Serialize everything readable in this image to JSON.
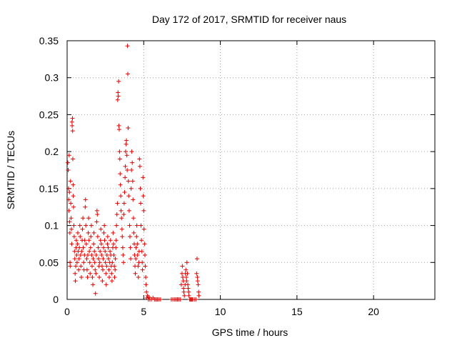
{
  "chart_data": {
    "type": "scatter",
    "title": "Day 172 of 2017, SRMTID for receiver naus",
    "xlabel": "GPS time / hours",
    "ylabel": "SRMTID / TECUs",
    "xlim": [
      0,
      24
    ],
    "ylim": [
      0,
      0.35
    ],
    "x_ticks": [
      0,
      5,
      10,
      15,
      20
    ],
    "y_ticks": [
      0,
      0.05,
      0.1,
      0.15,
      0.2,
      0.25,
      0.3,
      0.35
    ],
    "x_tick_labels": [
      "0",
      "5",
      "10",
      "15",
      "20"
    ],
    "y_tick_labels": [
      "0",
      "0.05",
      "0.1",
      "0.15",
      "0.2",
      "0.25",
      "0.3",
      "0.35"
    ],
    "grid": true,
    "marker": "plus",
    "color": "#e00000",
    "series": [
      {
        "name": "",
        "points": [
          [
            0.05,
            0.185
          ],
          [
            0.07,
            0.175
          ],
          [
            0.09,
            0.15
          ],
          [
            0.1,
            0.135
          ],
          [
            0.12,
            0.12
          ],
          [
            0.13,
            0.195
          ],
          [
            0.15,
            0.145
          ],
          [
            0.16,
            0.105
          ],
          [
            0.18,
            0.09
          ],
          [
            0.19,
            0.05
          ],
          [
            0.2,
            0.045
          ],
          [
            0.22,
            0.16
          ],
          [
            0.24,
            0.13
          ],
          [
            0.26,
            0.11
          ],
          [
            0.28,
            0.095
          ],
          [
            0.3,
            0.075
          ],
          [
            0.32,
            0.24
          ],
          [
            0.33,
            0.235
          ],
          [
            0.35,
            0.245
          ],
          [
            0.36,
            0.228
          ],
          [
            0.37,
            0.19
          ],
          [
            0.39,
            0.155
          ],
          [
            0.4,
            0.14
          ],
          [
            0.42,
            0.125
          ],
          [
            0.44,
            0.1
          ],
          [
            0.46,
            0.085
          ],
          [
            0.48,
            0.065
          ],
          [
            0.5,
            0.055
          ],
          [
            0.52,
            0.035
          ],
          [
            0.54,
            0.025
          ],
          [
            0.56,
            0.045
          ],
          [
            0.58,
            0.07
          ],
          [
            0.6,
            0.08
          ],
          [
            0.62,
            0.06
          ],
          [
            0.65,
            0.05
          ],
          [
            0.68,
            0.075
          ],
          [
            0.7,
            0.09
          ],
          [
            0.72,
            0.065
          ],
          [
            0.75,
            0.04
          ],
          [
            0.78,
            0.055
          ],
          [
            0.8,
            0.07
          ],
          [
            0.83,
            0.1
          ],
          [
            0.85,
            0.085
          ],
          [
            0.88,
            0.06
          ],
          [
            0.9,
            0.045
          ],
          [
            0.93,
            0.03
          ],
          [
            0.95,
            0.065
          ],
          [
            0.98,
            0.08
          ],
          [
            1.0,
            0.095
          ],
          [
            1.03,
            0.11
          ],
          [
            1.05,
            0.07
          ],
          [
            1.08,
            0.05
          ],
          [
            1.1,
            0.04
          ],
          [
            1.13,
            0.06
          ],
          [
            1.15,
            0.08
          ],
          [
            1.18,
            0.125
          ],
          [
            1.2,
            0.135
          ],
          [
            1.22,
            0.1
          ],
          [
            1.25,
            0.075
          ],
          [
            1.28,
            0.055
          ],
          [
            1.3,
            0.04
          ],
          [
            1.33,
            0.03
          ],
          [
            1.35,
            0.06
          ],
          [
            1.38,
            0.09
          ],
          [
            1.4,
            0.11
          ],
          [
            1.43,
            0.08
          ],
          [
            1.45,
            0.065
          ],
          [
            1.48,
            0.05
          ],
          [
            1.5,
            0.035
          ],
          [
            1.53,
            0.07
          ],
          [
            1.55,
            0.085
          ],
          [
            1.58,
            0.1
          ],
          [
            1.6,
            0.06
          ],
          [
            1.63,
            0.045
          ],
          [
            1.65,
            0.03
          ],
          [
            1.68,
            0.02
          ],
          [
            1.7,
            0.055
          ],
          [
            1.73,
            0.075
          ],
          [
            1.75,
            0.09
          ],
          [
            1.78,
            0.065
          ],
          [
            1.8,
            0.05
          ],
          [
            1.83,
            0.04
          ],
          [
            1.85,
            0.008
          ],
          [
            1.88,
            0.035
          ],
          [
            1.9,
            0.06
          ],
          [
            1.93,
            0.105
          ],
          [
            1.95,
            0.12
          ],
          [
            1.97,
            0.115
          ],
          [
            2.0,
            0.085
          ],
          [
            2.03,
            0.07
          ],
          [
            2.05,
            0.055
          ],
          [
            2.08,
            0.045
          ],
          [
            2.1,
            0.03
          ],
          [
            2.13,
            0.05
          ],
          [
            2.15,
            0.065
          ],
          [
            2.18,
            0.08
          ],
          [
            2.2,
            0.095
          ],
          [
            2.23,
            0.075
          ],
          [
            2.25,
            0.06
          ],
          [
            2.28,
            0.045
          ],
          [
            2.3,
            0.025
          ],
          [
            2.33,
            0.04
          ],
          [
            2.35,
            0.055
          ],
          [
            2.38,
            0.07
          ],
          [
            2.4,
            0.09
          ],
          [
            2.43,
            0.1
          ],
          [
            2.45,
            0.08
          ],
          [
            2.48,
            0.065
          ],
          [
            2.5,
            0.05
          ],
          [
            2.53,
            0.035
          ],
          [
            2.55,
            0.02
          ],
          [
            2.58,
            0.045
          ],
          [
            2.6,
            0.06
          ],
          [
            2.63,
            0.075
          ],
          [
            2.65,
            0.085
          ],
          [
            2.68,
            0.07
          ],
          [
            2.7,
            0.055
          ],
          [
            2.73,
            0.04
          ],
          [
            2.75,
            0.03
          ],
          [
            2.78,
            0.05
          ],
          [
            2.8,
            0.065
          ],
          [
            2.83,
            0.08
          ],
          [
            2.85,
            0.06
          ],
          [
            2.88,
            0.045
          ],
          [
            2.9,
            0.035
          ],
          [
            2.93,
            0.025
          ],
          [
            2.95,
            0.05
          ],
          [
            2.98,
            0.07
          ],
          [
            3.0,
            0.09
          ],
          [
            3.03,
            0.075
          ],
          [
            3.05,
            0.06
          ],
          [
            3.08,
            0.045
          ],
          [
            3.1,
            0.03
          ],
          [
            3.13,
            0.04
          ],
          [
            3.15,
            0.055
          ],
          [
            3.18,
            0.07
          ],
          [
            3.2,
            0.08
          ],
          [
            3.22,
            0.1
          ],
          [
            3.25,
            0.115
          ],
          [
            3.28,
            0.13
          ],
          [
            3.3,
            0.27
          ],
          [
            3.32,
            0.28
          ],
          [
            3.34,
            0.275
          ],
          [
            3.36,
            0.295
          ],
          [
            3.38,
            0.235
          ],
          [
            3.4,
            0.23
          ],
          [
            3.42,
            0.2
          ],
          [
            3.44,
            0.19
          ],
          [
            3.46,
            0.17
          ],
          [
            3.48,
            0.155
          ],
          [
            3.5,
            0.14
          ],
          [
            3.52,
            0.12
          ],
          [
            3.55,
            0.11
          ],
          [
            3.58,
            0.095
          ],
          [
            3.6,
            0.085
          ],
          [
            3.63,
            0.07
          ],
          [
            3.65,
            0.06
          ],
          [
            3.68,
            0.05
          ],
          [
            3.7,
            0.115
          ],
          [
            3.72,
            0.13
          ],
          [
            3.75,
            0.145
          ],
          [
            3.78,
            0.165
          ],
          [
            3.8,
            0.18
          ],
          [
            3.82,
            0.2
          ],
          [
            3.85,
            0.21
          ],
          [
            3.87,
            0.215
          ],
          [
            3.9,
            0.195
          ],
          [
            3.92,
            0.175
          ],
          [
            3.94,
            0.343
          ],
          [
            3.96,
            0.305
          ],
          [
            3.98,
            0.232
          ],
          [
            4.0,
            0.16
          ],
          [
            4.02,
            0.14
          ],
          [
            4.05,
            0.12
          ],
          [
            4.08,
            0.1
          ],
          [
            4.1,
            0.085
          ],
          [
            4.13,
            0.07
          ],
          [
            4.15,
            0.055
          ],
          [
            4.18,
            0.15
          ],
          [
            4.2,
            0.175
          ],
          [
            4.22,
            0.2
          ],
          [
            4.25,
            0.185
          ],
          [
            4.28,
            0.16
          ],
          [
            4.3,
            0.135
          ],
          [
            4.33,
            0.11
          ],
          [
            4.35,
            0.09
          ],
          [
            4.38,
            0.075
          ],
          [
            4.4,
            0.06
          ],
          [
            4.43,
            0.045
          ],
          [
            4.45,
            0.035
          ],
          [
            4.48,
            0.055
          ],
          [
            4.5,
            0.07
          ],
          [
            4.53,
            0.085
          ],
          [
            4.55,
            0.1
          ],
          [
            4.58,
            0.075
          ],
          [
            4.6,
            0.06
          ],
          [
            4.63,
            0.045
          ],
          [
            4.65,
            0.03
          ],
          [
            4.68,
            0.05
          ],
          [
            4.7,
            0.065
          ],
          [
            4.72,
            0.19
          ],
          [
            4.75,
            0.18
          ],
          [
            4.78,
            0.15
          ],
          [
            4.8,
            0.13
          ],
          [
            4.82,
            0.1
          ],
          [
            4.85,
            0.08
          ],
          [
            4.88,
            0.065
          ],
          [
            4.9,
            0.05
          ],
          [
            4.92,
            0.04
          ],
          [
            4.95,
            0.165
          ],
          [
            4.97,
            0.14
          ],
          [
            5.0,
            0.12
          ],
          [
            5.02,
            0.095
          ],
          [
            5.05,
            0.075
          ],
          [
            5.08,
            0.06
          ],
          [
            5.1,
            0.045
          ],
          [
            5.13,
            0.03
          ],
          [
            5.15,
            0.02
          ],
          [
            5.18,
            0.01
          ],
          [
            5.2,
            0.002
          ],
          [
            5.25,
            0.005
          ],
          [
            5.3,
            0.0
          ],
          [
            5.35,
            0.003
          ],
          [
            5.4,
            0.0
          ],
          [
            5.5,
            0.0
          ],
          [
            5.6,
            0.002
          ],
          [
            5.7,
            0.0
          ],
          [
            5.8,
            0.0
          ],
          [
            5.9,
            0.0
          ],
          [
            6.0,
            0.0
          ],
          [
            6.1,
            0.0
          ],
          [
            6.8,
            0.0
          ],
          [
            6.9,
            0.0
          ],
          [
            7.0,
            0.0
          ],
          [
            7.1,
            0.0
          ],
          [
            7.2,
            0.0
          ],
          [
            7.3,
            0.0
          ],
          [
            7.4,
            0.0
          ],
          [
            7.45,
            0.02
          ],
          [
            7.5,
            0.035
          ],
          [
            7.52,
            0.045
          ],
          [
            7.55,
            0.03
          ],
          [
            7.58,
            0.025
          ],
          [
            7.6,
            0.015
          ],
          [
            7.62,
            0.01
          ],
          [
            7.65,
            0.005
          ],
          [
            7.7,
            0.02
          ],
          [
            7.72,
            0.035
          ],
          [
            7.75,
            0.04
          ],
          [
            7.78,
            0.03
          ],
          [
            7.8,
            0.025
          ],
          [
            7.82,
            0.05
          ],
          [
            7.85,
            0.035
          ],
          [
            7.88,
            0.02
          ],
          [
            7.9,
            0.015
          ],
          [
            7.93,
            0.01
          ],
          [
            7.95,
            0.005
          ],
          [
            8.0,
            0.0
          ],
          [
            8.05,
            0.0
          ],
          [
            8.1,
            0.0
          ],
          [
            8.15,
            0.0
          ],
          [
            8.2,
            0.0
          ],
          [
            8.3,
            0.0
          ],
          [
            8.4,
            0.0
          ],
          [
            8.45,
            0.035
          ],
          [
            8.48,
            0.055
          ],
          [
            8.5,
            0.03
          ],
          [
            8.52,
            0.025
          ],
          [
            8.55,
            0.02
          ],
          [
            8.58,
            0.01
          ],
          [
            8.6,
            0.005
          ]
        ]
      }
    ]
  }
}
